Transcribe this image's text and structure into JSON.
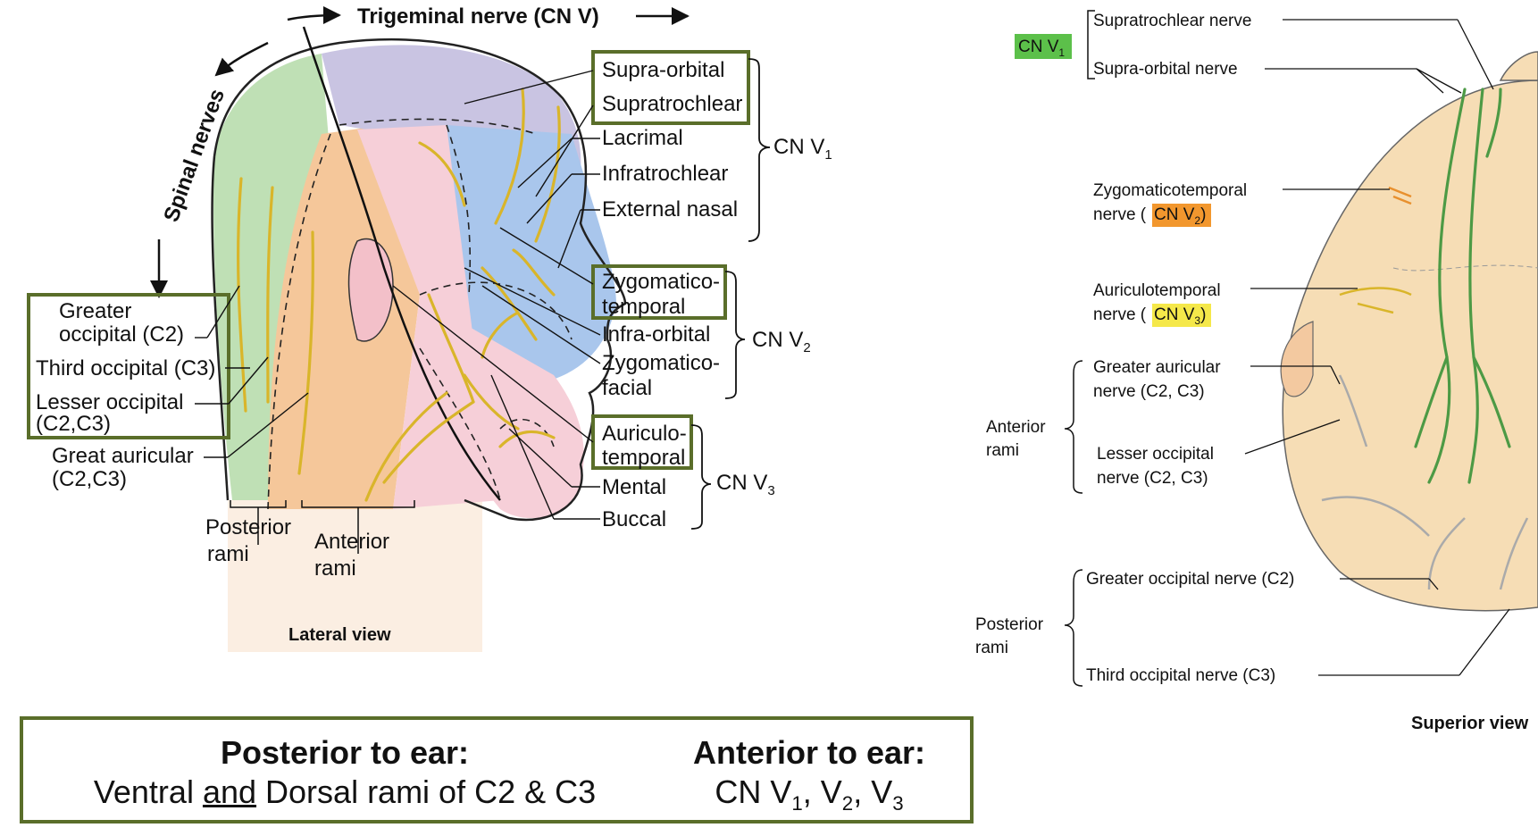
{
  "lateral": {
    "title_top": "Trigeminal nerve (CN V)",
    "spinal_label": "Spinal nerves",
    "view_label": "Lateral view",
    "v1_branches": [
      "Supra-orbital",
      "Supratrochlear",
      "Lacrimal",
      "Infratrochlear",
      "External nasal"
    ],
    "v2_branches": [
      "Zygomatico-",
      "temporal",
      "Infra-orbital",
      "Zygomatico-",
      "facial"
    ],
    "v3_branches": [
      "Auriculo-",
      "temporal",
      "Mental",
      "Buccal"
    ],
    "cn_v1": "CN V",
    "cn_v1_sub": "1",
    "cn_v2": "CN V",
    "cn_v2_sub": "2",
    "cn_v3": "CN V",
    "cn_v3_sub": "3",
    "left_labels": [
      "Greater",
      "occipital (C2)",
      "Third occipital (C3)",
      "Lesser occipital",
      "(C2,C3)",
      "Great auricular",
      "(C2,C3)"
    ],
    "rami": [
      "Posterior",
      "rami",
      "Anterior",
      "rami"
    ]
  },
  "superior": {
    "view_label": "Superior view",
    "cn_tag": "CN V",
    "cn_tag_sub": "1",
    "supratrochlear": "Supratrochlear nerve",
    "supraorbital": "Supra-orbital nerve",
    "zygomatico_1": "Zygomaticotemporal",
    "zygomatico_2": "nerve (",
    "zygomatico_tag": "CN V",
    "zygomatico_tag_sub": "2",
    "auriculo_1": "Auriculotemporal",
    "auriculo_2": "nerve (",
    "auriculo_tag": "CN V",
    "auriculo_tag_sub": "3",
    "anterior_rami": [
      "Anterior",
      "rami"
    ],
    "greater_auricular": [
      "Greater auricular",
      "nerve (C2, C3)"
    ],
    "lesser_occipital": [
      "Lesser occipital",
      "nerve (C2, C3)"
    ],
    "posterior_rami": [
      "Posterior",
      "rami"
    ],
    "greater_occipital": "Greater occipital nerve (C2)",
    "third_occipital": "Third occipital nerve (C3)"
  },
  "summary": {
    "posterior_head": "Posterior to ear:",
    "posterior_body_pre": "Ventral ",
    "posterior_body_and": "and",
    "posterior_body_post": " Dorsal rami of C2 & C3",
    "anterior_head": "Anterior to ear:",
    "anterior_body": "CN V",
    "anterior_sub1": "1",
    "anterior_mid1": ", V",
    "anterior_sub2": "2",
    "anterior_mid2": ", V",
    "anterior_sub3": "3"
  },
  "colors": {
    "box_border": "#5a6e2a",
    "green_region": "#bfe0b5",
    "purple_region": "#c9c4e2",
    "blue_region": "#a9c6ec",
    "pink_region": "#f6cfd8",
    "orange_region": "#f5c79a",
    "neck_skin": "#fbeee2",
    "nerve_yellow": "#d9b52a",
    "nerve_green": "#4d9a45",
    "tag_green": "#5cc04a",
    "tag_orange": "#f2972e",
    "tag_yellow": "#f5e84a",
    "scalp": "#f6ddb5"
  }
}
